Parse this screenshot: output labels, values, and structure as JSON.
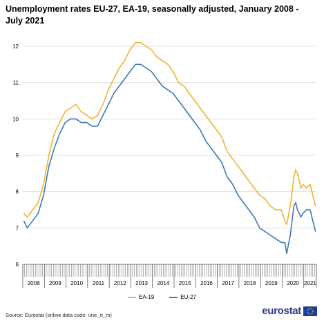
{
  "title": "Unemployment rates EU-27, EA-19, seasonally adjusted, January 2008 - July 2021",
  "source": "Source: Eurostat (online data code: une_rt_m)",
  "logo_text": "eurostat",
  "colors": {
    "EA-19": "#f2b233",
    "EU-27": "#3b78b8",
    "grid": "#dcdcdc",
    "axis": "#555555"
  },
  "chart_data": {
    "type": "line",
    "x_unit": "month",
    "x_start": "2008-01",
    "x_end": "2021-07",
    "ylim": [
      6,
      12
    ],
    "yticks": [
      6,
      7,
      8,
      9,
      10,
      11,
      12
    ],
    "year_labels": [
      "2008",
      "2009",
      "2010",
      "2011",
      "2012",
      "2013",
      "2014",
      "2015",
      "2016",
      "2017",
      "2018",
      "2019",
      "2020",
      "2021"
    ],
    "legend_position": "bottom-center",
    "grid": "horizontal",
    "series": [
      {
        "name": "EA-19",
        "x": [
          "2008-01",
          "2008-03",
          "2008-06",
          "2008-09",
          "2008-12",
          "2009-03",
          "2009-06",
          "2009-09",
          "2009-12",
          "2010-03",
          "2010-06",
          "2010-09",
          "2010-12",
          "2011-03",
          "2011-06",
          "2011-09",
          "2011-12",
          "2012-03",
          "2012-06",
          "2012-09",
          "2012-12",
          "2013-03",
          "2013-06",
          "2013-09",
          "2013-12",
          "2014-03",
          "2014-06",
          "2014-09",
          "2014-12",
          "2015-03",
          "2015-06",
          "2015-09",
          "2015-12",
          "2016-03",
          "2016-06",
          "2016-09",
          "2016-12",
          "2017-03",
          "2017-06",
          "2017-09",
          "2017-12",
          "2018-03",
          "2018-06",
          "2018-09",
          "2018-12",
          "2019-03",
          "2019-06",
          "2019-09",
          "2019-12",
          "2020-02",
          "2020-03",
          "2020-05",
          "2020-07",
          "2020-08",
          "2020-09",
          "2020-11",
          "2020-12",
          "2021-02",
          "2021-04",
          "2021-07"
        ],
        "values": [
          7.4,
          7.3,
          7.5,
          7.7,
          8.2,
          9.0,
          9.6,
          9.9,
          10.2,
          10.3,
          10.4,
          10.2,
          10.1,
          10.0,
          10.1,
          10.4,
          10.8,
          11.1,
          11.4,
          11.6,
          11.9,
          12.1,
          12.1,
          12.0,
          11.9,
          11.7,
          11.6,
          11.5,
          11.3,
          11.0,
          10.9,
          10.7,
          10.5,
          10.3,
          10.1,
          9.9,
          9.7,
          9.5,
          9.1,
          8.9,
          8.7,
          8.5,
          8.3,
          8.1,
          7.9,
          7.8,
          7.6,
          7.5,
          7.5,
          7.2,
          7.1,
          7.6,
          8.4,
          8.6,
          8.5,
          8.1,
          8.2,
          8.1,
          8.2,
          7.6
        ]
      },
      {
        "name": "EU-27",
        "x": [
          "2008-01",
          "2008-03",
          "2008-06",
          "2008-09",
          "2008-12",
          "2009-03",
          "2009-06",
          "2009-09",
          "2009-12",
          "2010-03",
          "2010-06",
          "2010-09",
          "2010-12",
          "2011-03",
          "2011-06",
          "2011-09",
          "2011-12",
          "2012-03",
          "2012-06",
          "2012-09",
          "2012-12",
          "2013-03",
          "2013-06",
          "2013-09",
          "2013-12",
          "2014-03",
          "2014-06",
          "2014-09",
          "2014-12",
          "2015-03",
          "2015-06",
          "2015-09",
          "2015-12",
          "2016-03",
          "2016-06",
          "2016-09",
          "2016-12",
          "2017-03",
          "2017-06",
          "2017-09",
          "2017-12",
          "2018-03",
          "2018-06",
          "2018-09",
          "2018-12",
          "2019-03",
          "2019-06",
          "2019-09",
          "2019-12",
          "2020-02",
          "2020-03",
          "2020-05",
          "2020-07",
          "2020-08",
          "2020-09",
          "2020-11",
          "2020-12",
          "2021-02",
          "2021-04",
          "2021-07"
        ],
        "values": [
          7.2,
          7.0,
          7.2,
          7.4,
          7.9,
          8.7,
          9.2,
          9.6,
          9.9,
          10.0,
          10.0,
          9.9,
          9.9,
          9.8,
          9.8,
          10.1,
          10.4,
          10.7,
          10.9,
          11.1,
          11.3,
          11.5,
          11.5,
          11.4,
          11.3,
          11.1,
          10.9,
          10.8,
          10.7,
          10.5,
          10.3,
          10.1,
          9.9,
          9.7,
          9.4,
          9.2,
          9.0,
          8.8,
          8.4,
          8.2,
          7.9,
          7.7,
          7.5,
          7.3,
          7.0,
          6.9,
          6.8,
          6.7,
          6.6,
          6.6,
          6.3,
          6.8,
          7.6,
          7.7,
          7.5,
          7.3,
          7.4,
          7.5,
          7.5,
          6.9
        ]
      }
    ]
  }
}
